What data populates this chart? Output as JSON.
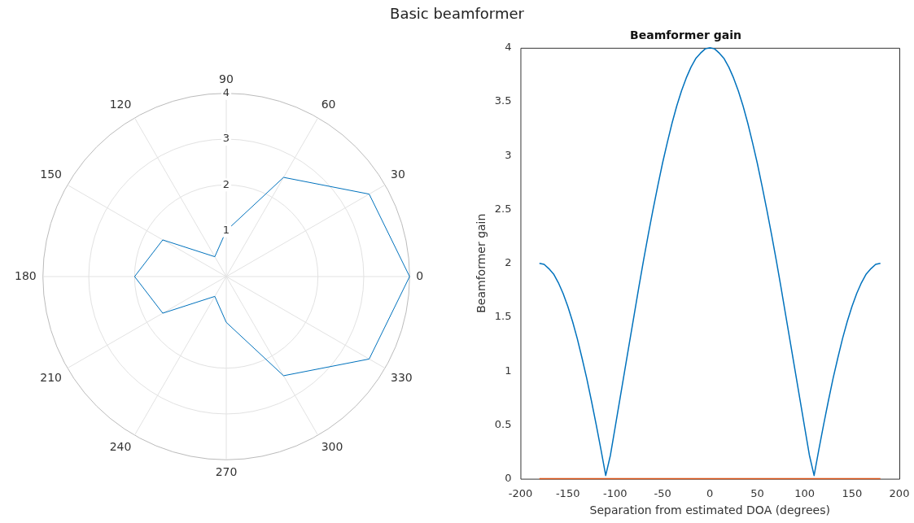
{
  "chart_data": [
    {
      "type": "radar",
      "title": "Basic beamformer",
      "categories": [
        "90",
        "60",
        "30",
        "0",
        "330",
        "300",
        "270",
        "240",
        "210",
        "180",
        "150",
        "120"
      ],
      "series": [
        {
          "color": "#0072bd",
          "values": [
            1.0,
            2.5,
            3.6,
            4.0,
            3.6,
            2.5,
            1.0,
            0.5,
            1.6,
            2.0,
            1.6,
            0.5
          ]
        }
      ],
      "ylim": [
        0,
        4
      ],
      "yticks": [
        1,
        2,
        3,
        4
      ],
      "grid": true,
      "marker": "none"
    },
    {
      "type": "line",
      "title": "Beamformer gain",
      "xlabel": "Separation from estimated DOA (degrees)",
      "ylabel": "Beamformer gain",
      "x": [
        -180,
        -175,
        -170,
        -165,
        -160,
        -155,
        -150,
        -145,
        -140,
        -135,
        -130,
        -125,
        -120,
        -115,
        -110,
        -105,
        -100,
        -95,
        -90,
        -85,
        -80,
        -75,
        -70,
        -65,
        -60,
        -55,
        -50,
        -45,
        -40,
        -35,
        -30,
        -25,
        -20,
        -15,
        -10,
        -5,
        0,
        5,
        10,
        15,
        20,
        25,
        30,
        35,
        40,
        45,
        50,
        55,
        60,
        65,
        70,
        75,
        80,
        85,
        90,
        95,
        100,
        105,
        110,
        115,
        120,
        125,
        130,
        135,
        140,
        145,
        150,
        155,
        160,
        165,
        170,
        175,
        180
      ],
      "series": [
        {
          "color": "#0072bd",
          "values": [
            2.0,
            1.99,
            1.95,
            1.9,
            1.82,
            1.72,
            1.6,
            1.46,
            1.3,
            1.12,
            0.93,
            0.72,
            0.5,
            0.27,
            0.03,
            0.22,
            0.48,
            0.74,
            1.0,
            1.26,
            1.52,
            1.78,
            2.03,
            2.27,
            2.5,
            2.72,
            2.93,
            3.12,
            3.3,
            3.46,
            3.6,
            3.72,
            3.82,
            3.9,
            3.95,
            3.99,
            4.0,
            3.99,
            3.95,
            3.9,
            3.82,
            3.72,
            3.6,
            3.46,
            3.3,
            3.12,
            2.93,
            2.72,
            2.5,
            2.27,
            2.03,
            1.78,
            1.52,
            1.26,
            1.0,
            0.74,
            0.48,
            0.22,
            0.03,
            0.27,
            0.5,
            0.72,
            0.93,
            1.12,
            1.3,
            1.46,
            1.6,
            1.72,
            1.82,
            1.9,
            1.95,
            1.99,
            2.0
          ]
        },
        {
          "color": "#d95319",
          "values": [
            0,
            0,
            0,
            0,
            0,
            0,
            0,
            0,
            0,
            0,
            0,
            0,
            0,
            0,
            0,
            0,
            0,
            0,
            0,
            0,
            0,
            0,
            0,
            0,
            0,
            0,
            0,
            0,
            0,
            0,
            0,
            0,
            0,
            0,
            0,
            0,
            0,
            0,
            0,
            0,
            0,
            0,
            0,
            0,
            0,
            0,
            0,
            0,
            0,
            0,
            0,
            0,
            0,
            0,
            0,
            0,
            0,
            0,
            0,
            0,
            0,
            0,
            0,
            0,
            0,
            0,
            0,
            0,
            0,
            0,
            0,
            0,
            0
          ]
        }
      ],
      "xlim": [
        -200,
        200
      ],
      "xticks": [
        -200,
        -150,
        -100,
        -50,
        0,
        50,
        100,
        150,
        200
      ],
      "ylim": [
        0,
        4
      ],
      "yticks": [
        0,
        0.5,
        1,
        1.5,
        2,
        2.5,
        3,
        3.5,
        4
      ],
      "marker": "none"
    }
  ]
}
